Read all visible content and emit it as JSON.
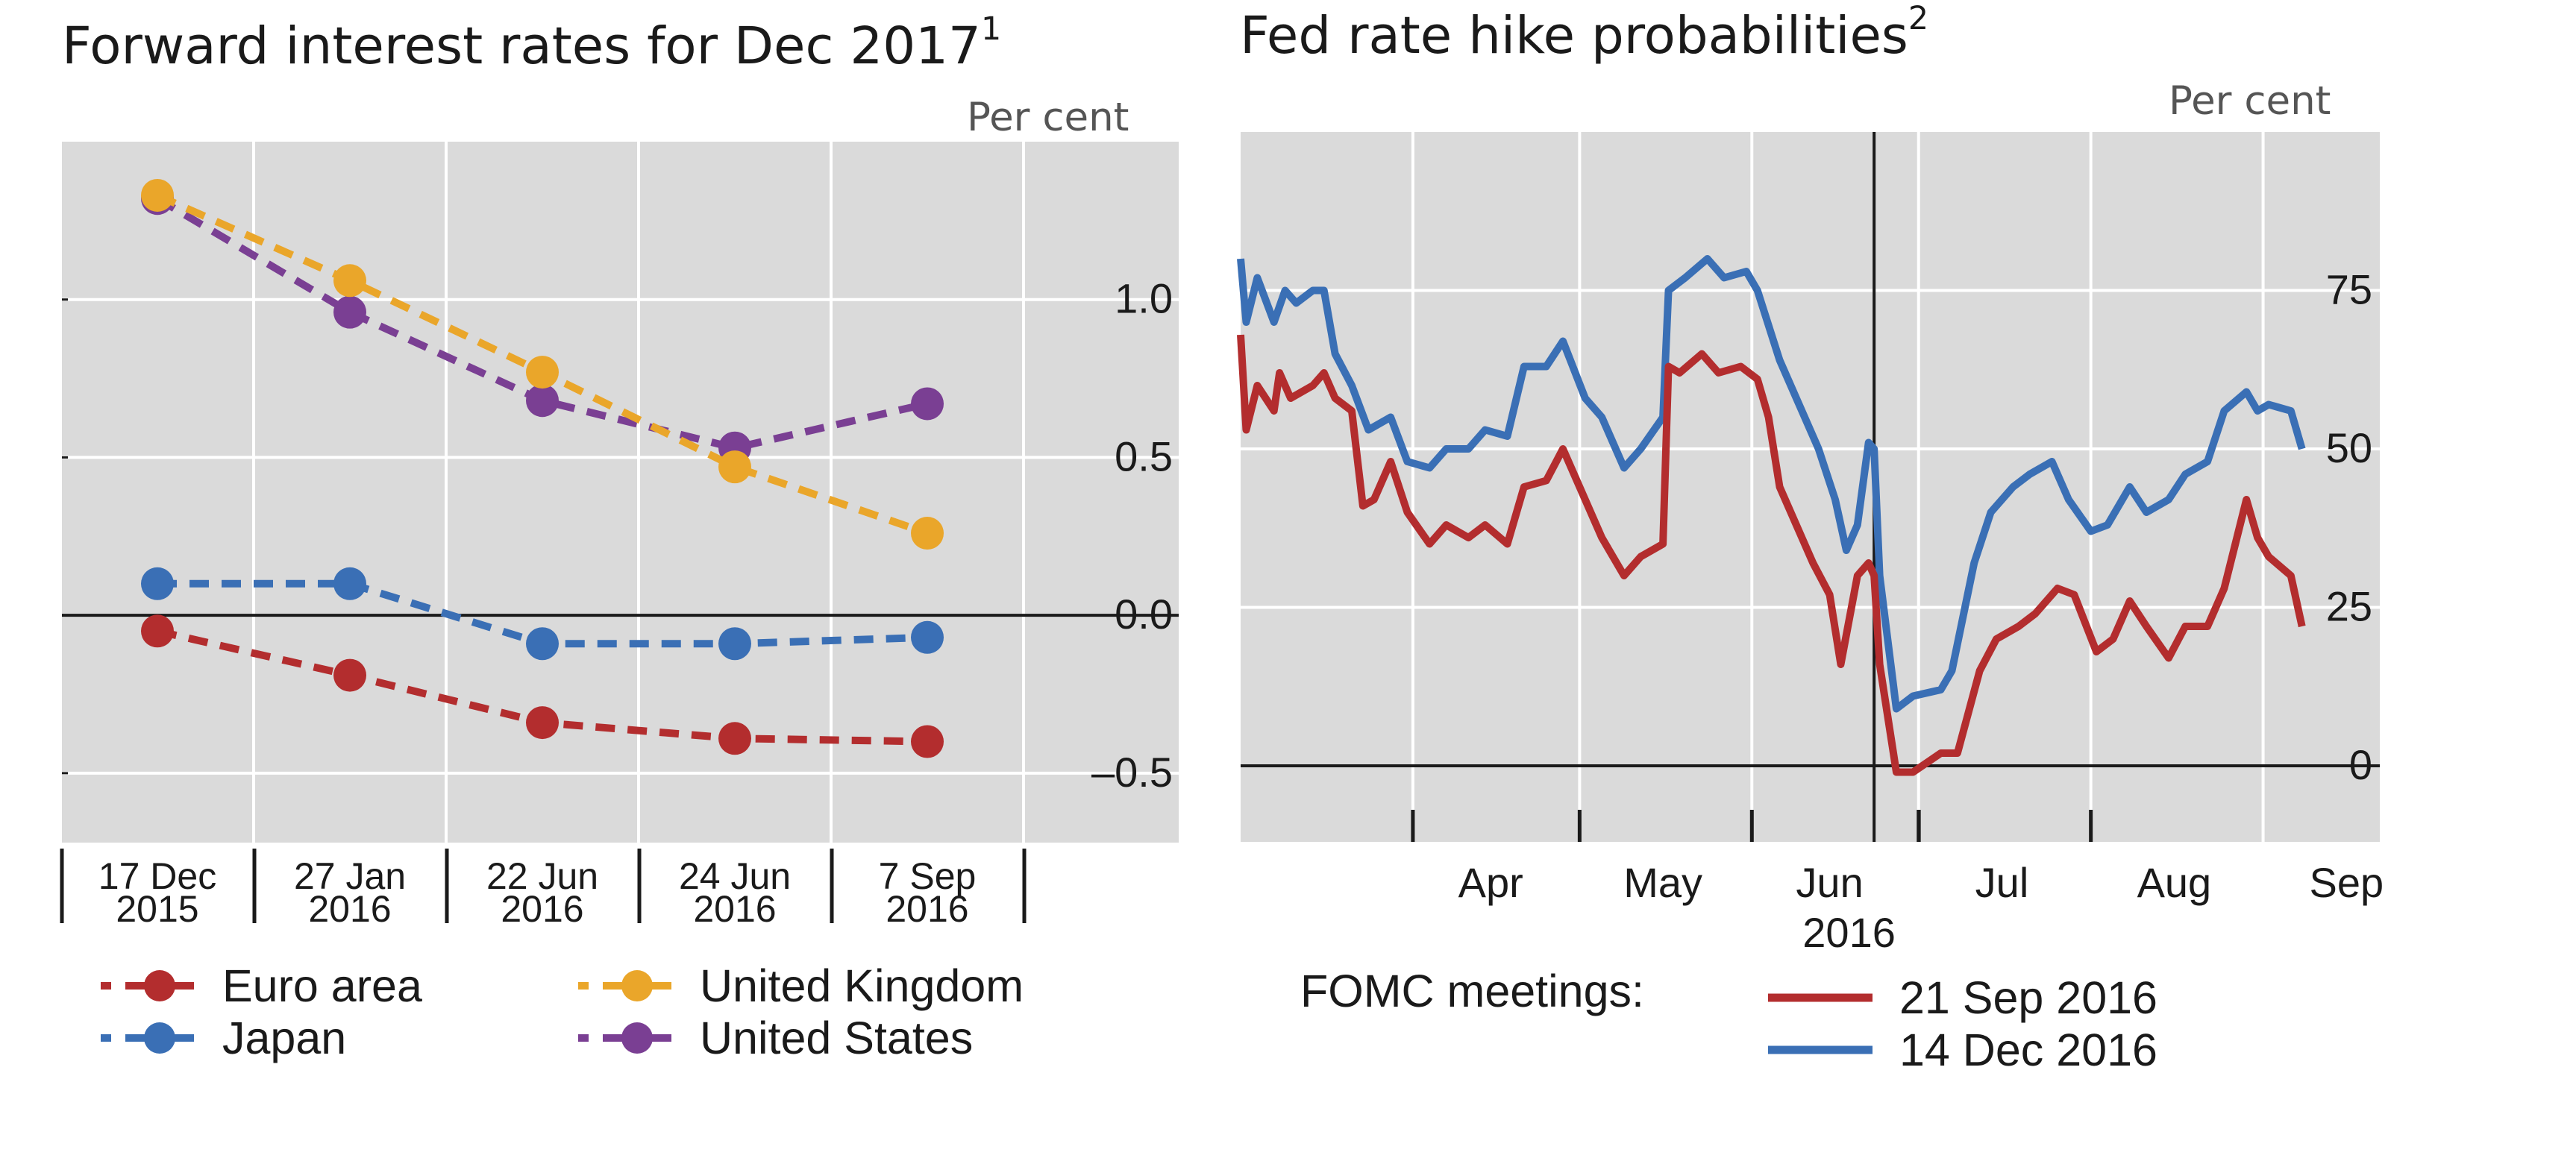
{
  "colors": {
    "euro_area": "#b32d2e",
    "japan": "#3a6fb5",
    "united_kingdom": "#eaa62a",
    "united_states": "#7a3f93",
    "sep_meeting": "#b32d2e",
    "dec_meeting": "#3a6fb5",
    "plot_bg": "#dadada"
  },
  "chart_data": [
    {
      "type": "line",
      "title": "Forward interest rates for Dec 2017",
      "title_note": "1",
      "unit_label": "Per cent",
      "categories": [
        {
          "line1": "17 Dec",
          "line2": "2015"
        },
        {
          "line1": "27 Jan",
          "line2": "2016"
        },
        {
          "line1": "22 Jun",
          "line2": "2016"
        },
        {
          "line1": "24 Jun",
          "line2": "2016"
        },
        {
          "line1": "7 Sep",
          "line2": "2016"
        }
      ],
      "y_ticks": [
        "1.0",
        "0.5",
        "0.0",
        "–0.5"
      ],
      "y_tick_values": [
        1.0,
        0.5,
        0.0,
        -0.5
      ],
      "ylim": [
        -0.72,
        1.5
      ],
      "series": [
        {
          "name": "Euro area",
          "color_key": "euro_area",
          "values": [
            -0.05,
            -0.19,
            -0.34,
            -0.39,
            -0.4
          ]
        },
        {
          "name": "Japan",
          "color_key": "japan",
          "values": [
            0.1,
            0.1,
            -0.09,
            -0.09,
            -0.07
          ]
        },
        {
          "name": "United Kingdom",
          "color_key": "united_kingdom",
          "values": [
            1.33,
            1.06,
            0.77,
            0.47,
            0.26
          ]
        },
        {
          "name": "United States",
          "color_key": "united_states",
          "values": [
            1.32,
            0.96,
            0.68,
            0.53,
            0.67
          ]
        }
      ],
      "grid": true,
      "legend_position": "bottom"
    },
    {
      "type": "line",
      "title": "Fed rate hike probabilities",
      "title_note": "2",
      "unit_label": "Per cent",
      "x_months": [
        "Apr",
        "May",
        "Jun",
        "Jul",
        "Aug",
        "Sep"
      ],
      "x_year": "2016",
      "x_range": [
        "2016-03-01",
        "2016-09-22"
      ],
      "y_ticks": [
        "75",
        "50",
        "25",
        "0"
      ],
      "y_tick_values": [
        75,
        50,
        25,
        0
      ],
      "ylim": [
        -12,
        100
      ],
      "event_line_date": "2016-06-23",
      "legend_title": "FOMC meetings:",
      "series": [
        {
          "name": "21 Sep 2016",
          "color_key": "sep_meeting",
          "points": [
            [
              "2016-03-01",
              68
            ],
            [
              "2016-03-02",
              53
            ],
            [
              "2016-03-04",
              60
            ],
            [
              "2016-03-07",
              56
            ],
            [
              "2016-03-08",
              62
            ],
            [
              "2016-03-10",
              58
            ],
            [
              "2016-03-14",
              60
            ],
            [
              "2016-03-16",
              62
            ],
            [
              "2016-03-18",
              58
            ],
            [
              "2016-03-21",
              56
            ],
            [
              "2016-03-23",
              41
            ],
            [
              "2016-03-25",
              42
            ],
            [
              "2016-03-28",
              48
            ],
            [
              "2016-03-31",
              40
            ],
            [
              "2016-04-04",
              35
            ],
            [
              "2016-04-07",
              38
            ],
            [
              "2016-04-11",
              36
            ],
            [
              "2016-04-14",
              38
            ],
            [
              "2016-04-18",
              35
            ],
            [
              "2016-04-21",
              44
            ],
            [
              "2016-04-25",
              45
            ],
            [
              "2016-04-28",
              50
            ],
            [
              "2016-05-02",
              42
            ],
            [
              "2016-05-05",
              36
            ],
            [
              "2016-05-09",
              30
            ],
            [
              "2016-05-12",
              33
            ],
            [
              "2016-05-16",
              35
            ],
            [
              "2016-05-17",
              63
            ],
            [
              "2016-05-19",
              62
            ],
            [
              "2016-05-23",
              65
            ],
            [
              "2016-05-26",
              62
            ],
            [
              "2016-05-30",
              63
            ],
            [
              "2016-06-02",
              61
            ],
            [
              "2016-06-04",
              55
            ],
            [
              "2016-06-06",
              44
            ],
            [
              "2016-06-09",
              38
            ],
            [
              "2016-06-12",
              32
            ],
            [
              "2016-06-15",
              27
            ],
            [
              "2016-06-17",
              16
            ],
            [
              "2016-06-20",
              30
            ],
            [
              "2016-06-22",
              32
            ],
            [
              "2016-06-23",
              30
            ],
            [
              "2016-06-24",
              16
            ],
            [
              "2016-06-27",
              -1
            ],
            [
              "2016-06-30",
              -1
            ],
            [
              "2016-07-05",
              2
            ],
            [
              "2016-07-08",
              2
            ],
            [
              "2016-07-12",
              15
            ],
            [
              "2016-07-15",
              20
            ],
            [
              "2016-07-19",
              22
            ],
            [
              "2016-07-22",
              24
            ],
            [
              "2016-07-26",
              28
            ],
            [
              "2016-07-29",
              27
            ],
            [
              "2016-08-02",
              18
            ],
            [
              "2016-08-05",
              20
            ],
            [
              "2016-08-08",
              26
            ],
            [
              "2016-08-11",
              22
            ],
            [
              "2016-08-15",
              17
            ],
            [
              "2016-08-18",
              22
            ],
            [
              "2016-08-22",
              22
            ],
            [
              "2016-08-25",
              28
            ],
            [
              "2016-08-29",
              42
            ],
            [
              "2016-08-31",
              36
            ],
            [
              "2016-09-02",
              33
            ],
            [
              "2016-09-06",
              30
            ],
            [
              "2016-09-08",
              22
            ]
          ]
        },
        {
          "name": "14 Dec 2016",
          "color_key": "dec_meeting",
          "points": [
            [
              "2016-03-01",
              80
            ],
            [
              "2016-03-02",
              70
            ],
            [
              "2016-03-04",
              77
            ],
            [
              "2016-03-07",
              70
            ],
            [
              "2016-03-09",
              75
            ],
            [
              "2016-03-11",
              73
            ],
            [
              "2016-03-14",
              75
            ],
            [
              "2016-03-16",
              75
            ],
            [
              "2016-03-18",
              65
            ],
            [
              "2016-03-21",
              60
            ],
            [
              "2016-03-24",
              53
            ],
            [
              "2016-03-28",
              55
            ],
            [
              "2016-03-31",
              48
            ],
            [
              "2016-04-04",
              47
            ],
            [
              "2016-04-07",
              50
            ],
            [
              "2016-04-11",
              50
            ],
            [
              "2016-04-14",
              53
            ],
            [
              "2016-04-18",
              52
            ],
            [
              "2016-04-21",
              63
            ],
            [
              "2016-04-25",
              63
            ],
            [
              "2016-04-28",
              67
            ],
            [
              "2016-05-02",
              58
            ],
            [
              "2016-05-05",
              55
            ],
            [
              "2016-05-09",
              47
            ],
            [
              "2016-05-12",
              50
            ],
            [
              "2016-05-16",
              55
            ],
            [
              "2016-05-17",
              75
            ],
            [
              "2016-05-20",
              77
            ],
            [
              "2016-05-24",
              80
            ],
            [
              "2016-05-27",
              77
            ],
            [
              "2016-05-31",
              78
            ],
            [
              "2016-06-02",
              75
            ],
            [
              "2016-06-06",
              64
            ],
            [
              "2016-06-09",
              58
            ],
            [
              "2016-06-13",
              50
            ],
            [
              "2016-06-16",
              42
            ],
            [
              "2016-06-18",
              34
            ],
            [
              "2016-06-20",
              38
            ],
            [
              "2016-06-22",
              51
            ],
            [
              "2016-06-23",
              50
            ],
            [
              "2016-06-24",
              30
            ],
            [
              "2016-06-27",
              9
            ],
            [
              "2016-06-30",
              11
            ],
            [
              "2016-07-05",
              12
            ],
            [
              "2016-07-07",
              15
            ],
            [
              "2016-07-11",
              32
            ],
            [
              "2016-07-14",
              40
            ],
            [
              "2016-07-18",
              44
            ],
            [
              "2016-07-21",
              46
            ],
            [
              "2016-07-25",
              48
            ],
            [
              "2016-07-28",
              42
            ],
            [
              "2016-08-01",
              37
            ],
            [
              "2016-08-04",
              38
            ],
            [
              "2016-08-08",
              44
            ],
            [
              "2016-08-11",
              40
            ],
            [
              "2016-08-15",
              42
            ],
            [
              "2016-08-18",
              46
            ],
            [
              "2016-08-22",
              48
            ],
            [
              "2016-08-25",
              56
            ],
            [
              "2016-08-29",
              59
            ],
            [
              "2016-08-31",
              56
            ],
            [
              "2016-09-02",
              57
            ],
            [
              "2016-09-06",
              56
            ],
            [
              "2016-09-08",
              50
            ]
          ]
        }
      ],
      "grid": true,
      "legend_position": "bottom"
    }
  ]
}
